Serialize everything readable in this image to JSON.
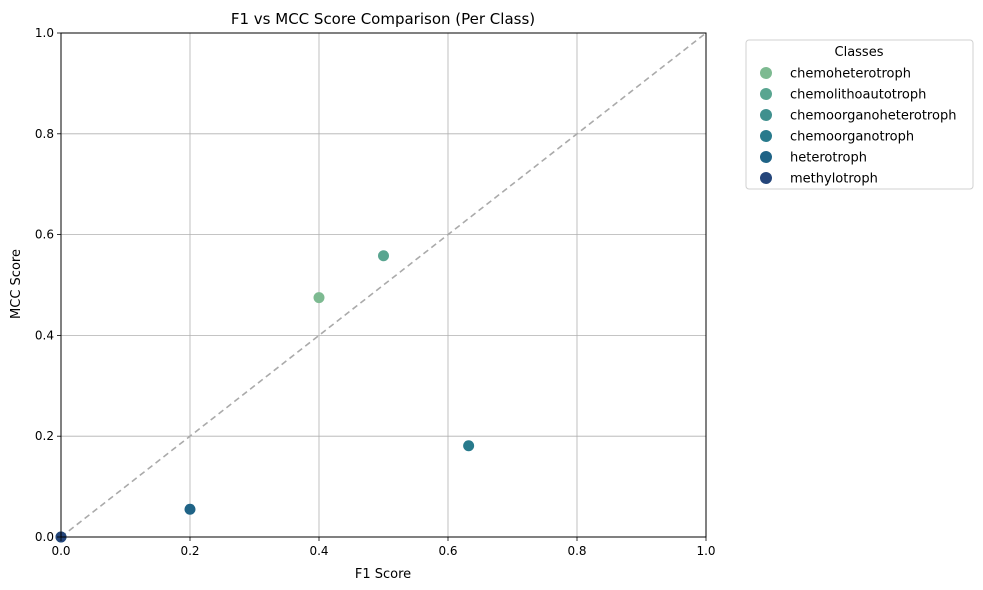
{
  "chart_data": {
    "type": "scatter",
    "title": "F1 vs MCC Score Comparison (Per Class)",
    "xlabel": "F1 Score",
    "ylabel": "MCC Score",
    "xlim": [
      0,
      1
    ],
    "ylim": [
      0,
      1
    ],
    "xticks": [
      "0.0",
      "0.2",
      "0.4",
      "0.6",
      "0.8",
      "1.0"
    ],
    "yticks": [
      "0.0",
      "0.2",
      "0.4",
      "0.6",
      "0.8",
      "1.0"
    ],
    "tick_values": [
      0,
      0.2,
      0.4,
      0.6,
      0.8,
      1.0
    ],
    "grid": true,
    "reference_line": "y = x (dashed)",
    "legend": {
      "title": "Classes",
      "placement": "outside-right-top"
    },
    "series": [
      {
        "name": "chemoheterotroph",
        "color": "#7dba91",
        "points": [
          {
            "x": 0.4,
            "y": 0.475
          }
        ]
      },
      {
        "name": "chemolithoautotroph",
        "color": "#59a590",
        "points": [
          {
            "x": 0.5,
            "y": 0.558
          }
        ]
      },
      {
        "name": "chemoorganoheterotroph",
        "color": "#40908e",
        "points": [
          {
            "x": 0.0,
            "y": 0.0
          }
        ]
      },
      {
        "name": "chemoorganotroph",
        "color": "#287a8c",
        "points": [
          {
            "x": 0.632,
            "y": 0.181
          }
        ]
      },
      {
        "name": "heterotroph",
        "color": "#1f6386",
        "points": [
          {
            "x": 0.2,
            "y": 0.055
          }
        ]
      },
      {
        "name": "methylotroph",
        "color": "#24457a",
        "points": [
          {
            "x": 0.0,
            "y": 0.0
          }
        ]
      }
    ]
  }
}
